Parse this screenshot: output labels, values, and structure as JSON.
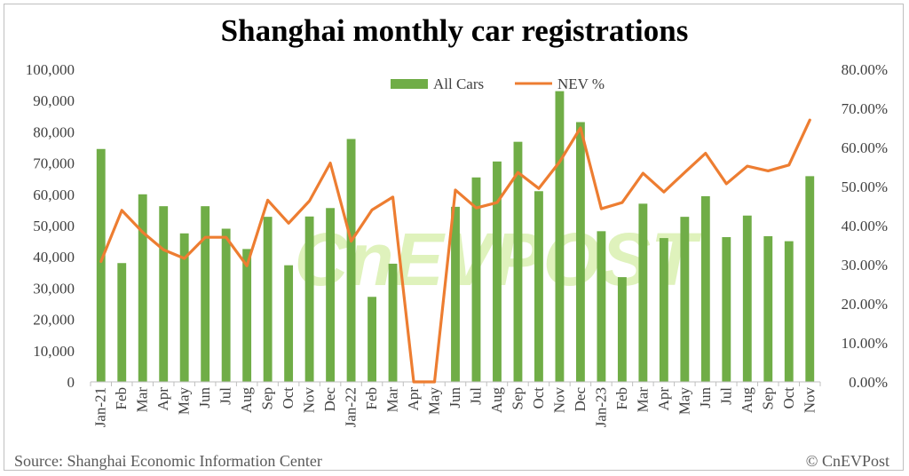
{
  "colors": {
    "bars": "#70ad47",
    "line": "#ed7d31",
    "text": "#404040",
    "watermark": "#c6e887"
  },
  "footer": {
    "source": "Source: Shanghai Economic Information Center",
    "copyright": "© CnEVPost"
  },
  "watermark": "CnEVPOST",
  "chart_data": {
    "type": "bar",
    "title": "Shanghai monthly car registrations",
    "categories": [
      "Jan-21",
      "Feb",
      "Mar",
      "Apr",
      "May",
      "Jun",
      "Jul",
      "Aug",
      "Sep",
      "Oct",
      "Nov",
      "Dec",
      "Jan-22",
      "Feb",
      "Mar",
      "Apr",
      "May",
      "Jun",
      "Jul",
      "Aug",
      "Sep",
      "Oct",
      "Nov",
      "Dec",
      "Jan-23",
      "Feb",
      "Mar",
      "Apr",
      "May",
      "Jun",
      "Jul",
      "Aug",
      "Sep",
      "Oct",
      "Nov"
    ],
    "series": [
      {
        "name": "All Cars",
        "type": "bar",
        "axis": "left",
        "values": [
          74500,
          38000,
          60000,
          56200,
          47500,
          56200,
          49000,
          42500,
          52800,
          37300,
          52900,
          55600,
          77700,
          27200,
          37800,
          0,
          0,
          56000,
          65400,
          70500,
          76800,
          61000,
          93000,
          83100,
          48200,
          33500,
          57000,
          46000,
          52800,
          59400,
          46300,
          53200,
          46600,
          45000,
          65800
        ]
      },
      {
        "name": "NEV %",
        "type": "line",
        "axis": "right",
        "values": [
          30.8,
          43.9,
          38.3,
          33.8,
          31.6,
          37.0,
          37.0,
          29.7,
          46.5,
          40.6,
          46.3,
          56.0,
          36.0,
          44.0,
          47.3,
          0,
          0,
          49.1,
          44.5,
          45.9,
          53.6,
          49.5,
          56.3,
          65.0,
          44.3,
          45.9,
          53.4,
          48.6,
          53.6,
          58.5,
          50.7,
          55.2,
          54.0,
          55.5,
          67.0
        ]
      }
    ],
    "left_axis": {
      "min": 0,
      "max": 100000,
      "ticks": [
        "0",
        "10,000",
        "20,000",
        "30,000",
        "40,000",
        "50,000",
        "60,000",
        "70,000",
        "80,000",
        "90,000",
        "100,000"
      ]
    },
    "right_axis": {
      "min": 0,
      "max": 80,
      "ticks": [
        "0.00%",
        "10.00%",
        "20.00%",
        "30.00%",
        "40.00%",
        "50.00%",
        "60.00%",
        "70.00%",
        "80.00%"
      ]
    },
    "legend": {
      "position": "top-center"
    },
    "grid": false
  }
}
